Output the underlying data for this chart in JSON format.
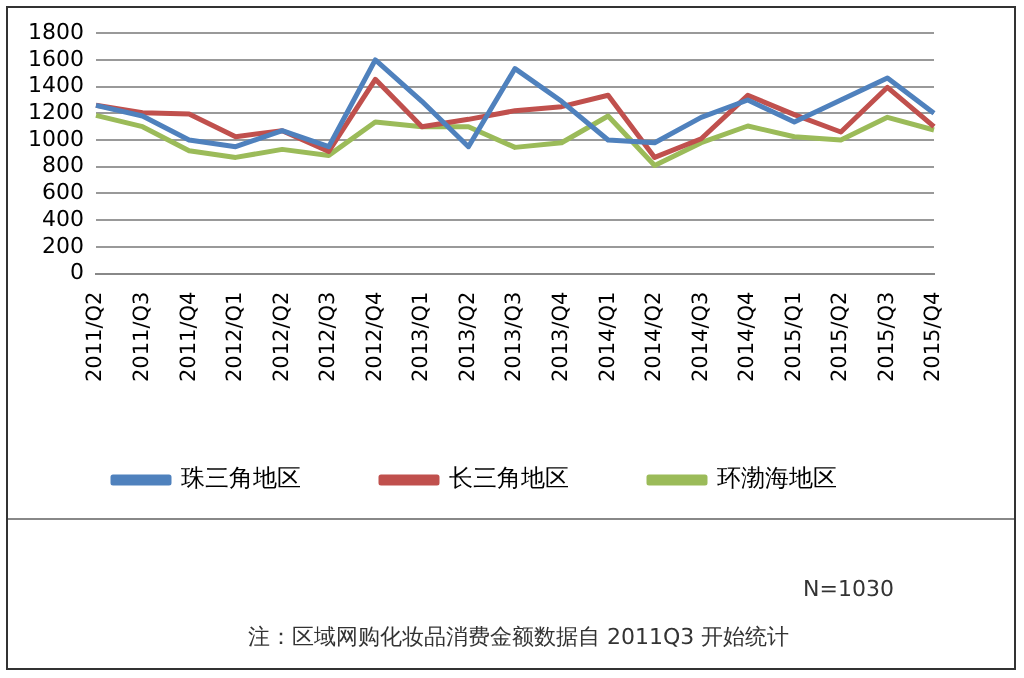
{
  "chart_data": {
    "type": "line",
    "categories": [
      "2011/Q2",
      "2011/Q3",
      "2011/Q4",
      "2012/Q1",
      "2012/Q2",
      "2012/Q3",
      "2012/Q4",
      "2013/Q1",
      "2013/Q2",
      "2013/Q3",
      "2013/Q4",
      "2014/Q1",
      "2014/Q2",
      "2014/Q3",
      "2014/Q4",
      "2015/Q1",
      "2015/Q2",
      "2015/Q3",
      "2015/Q4"
    ],
    "series": [
      {
        "name": "珠三角地区",
        "color": "#4f81bd",
        "values": [
          1260,
          1180,
          1000,
          950,
          1070,
          950,
          1600,
          1290,
          950,
          1535,
          1290,
          1000,
          980,
          1170,
          1300,
          1135,
          1300,
          1465,
          1200
        ]
      },
      {
        "name": "长三角地区",
        "color": "#c0504d",
        "values": [
          1260,
          1205,
          1195,
          1025,
          1070,
          915,
          1455,
          1100,
          1155,
          1220,
          1250,
          1335,
          870,
          1010,
          1335,
          1190,
          1060,
          1395,
          1100
        ]
      },
      {
        "name": "环渤海地区",
        "color": "#9bbb59",
        "values": [
          1185,
          1100,
          920,
          870,
          930,
          885,
          1135,
          1100,
          1100,
          945,
          980,
          1180,
          810,
          980,
          1105,
          1025,
          1000,
          1170,
          1075
        ]
      }
    ],
    "ylim": [
      0,
      1800
    ],
    "yticks": [
      0,
      200,
      400,
      600,
      800,
      1000,
      1200,
      1400,
      1600,
      1800
    ],
    "grid": "y",
    "legend": "bottom",
    "marker": "none",
    "line_style": "solid",
    "annotations": [
      "N=1030",
      "注：区域网购化妆品消费金额数据自 2011Q3 开始统计"
    ]
  }
}
